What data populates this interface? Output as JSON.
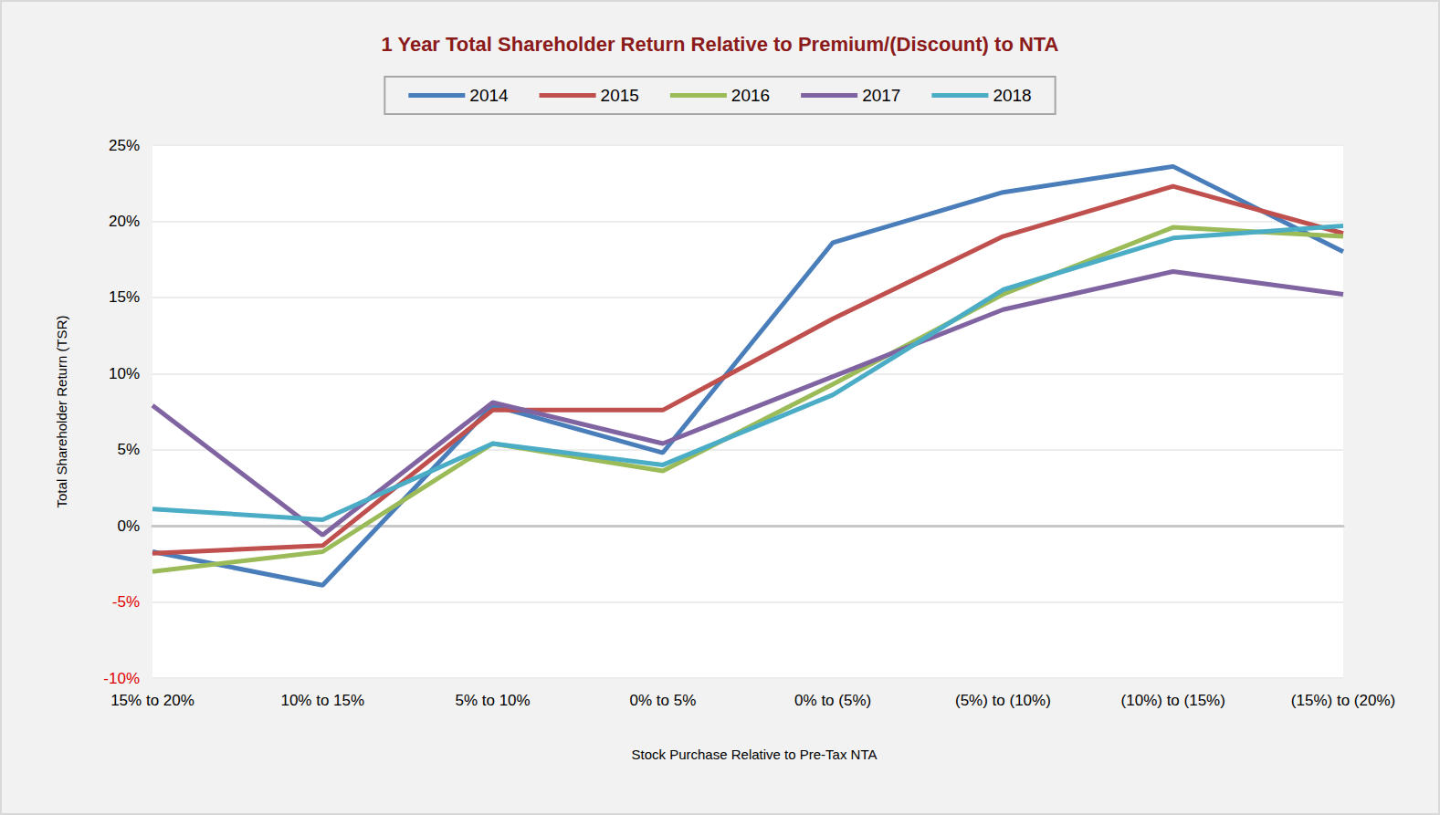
{
  "chart_data": {
    "type": "line",
    "title": "1 Year Total Shareholder Return Relative to Premium/(Discount) to NTA",
    "x_label": "Stock Purchase Relative to Pre-Tax NTA",
    "y_label": "Total Shareholder Return (TSR)",
    "categories": [
      "15% to 20%",
      "10% to 15%",
      "5% to 10%",
      "0% to 5%",
      "0% to (5%)",
      "(5%) to (10%)",
      "(10%) to (15%)",
      "(15%) to (20%)"
    ],
    "series": [
      {
        "name": "2014",
        "color": "#4a7ebb",
        "values": [
          -1.7,
          -3.9,
          7.9,
          4.8,
          18.6,
          21.9,
          23.6,
          18.0
        ]
      },
      {
        "name": "2015",
        "color": "#c0504d",
        "values": [
          -1.8,
          -1.3,
          7.6,
          7.6,
          13.6,
          19.0,
          22.3,
          19.2
        ]
      },
      {
        "name": "2016",
        "color": "#9bbb59",
        "values": [
          -3.0,
          -1.7,
          5.4,
          3.6,
          9.3,
          15.2,
          19.6,
          19.0
        ]
      },
      {
        "name": "2017",
        "color": "#8064a2",
        "values": [
          7.9,
          -0.6,
          8.1,
          5.4,
          9.8,
          14.2,
          16.7,
          15.2
        ]
      },
      {
        "name": "2018",
        "color": "#4bacc6",
        "values": [
          1.1,
          0.4,
          5.4,
          4.0,
          8.6,
          15.5,
          18.9,
          19.7
        ]
      }
    ],
    "ylim": [
      -10,
      25
    ],
    "yticks": [
      {
        "value": -10,
        "label": "-10%"
      },
      {
        "value": -5,
        "label": "-5%"
      },
      {
        "value": 0,
        "label": "0%"
      },
      {
        "value": 5,
        "label": "5%"
      },
      {
        "value": 10,
        "label": "10%"
      },
      {
        "value": 15,
        "label": "15%"
      },
      {
        "value": 20,
        "label": "20%"
      },
      {
        "value": 25,
        "label": "25%"
      }
    ],
    "grid": true,
    "legend": "top"
  }
}
